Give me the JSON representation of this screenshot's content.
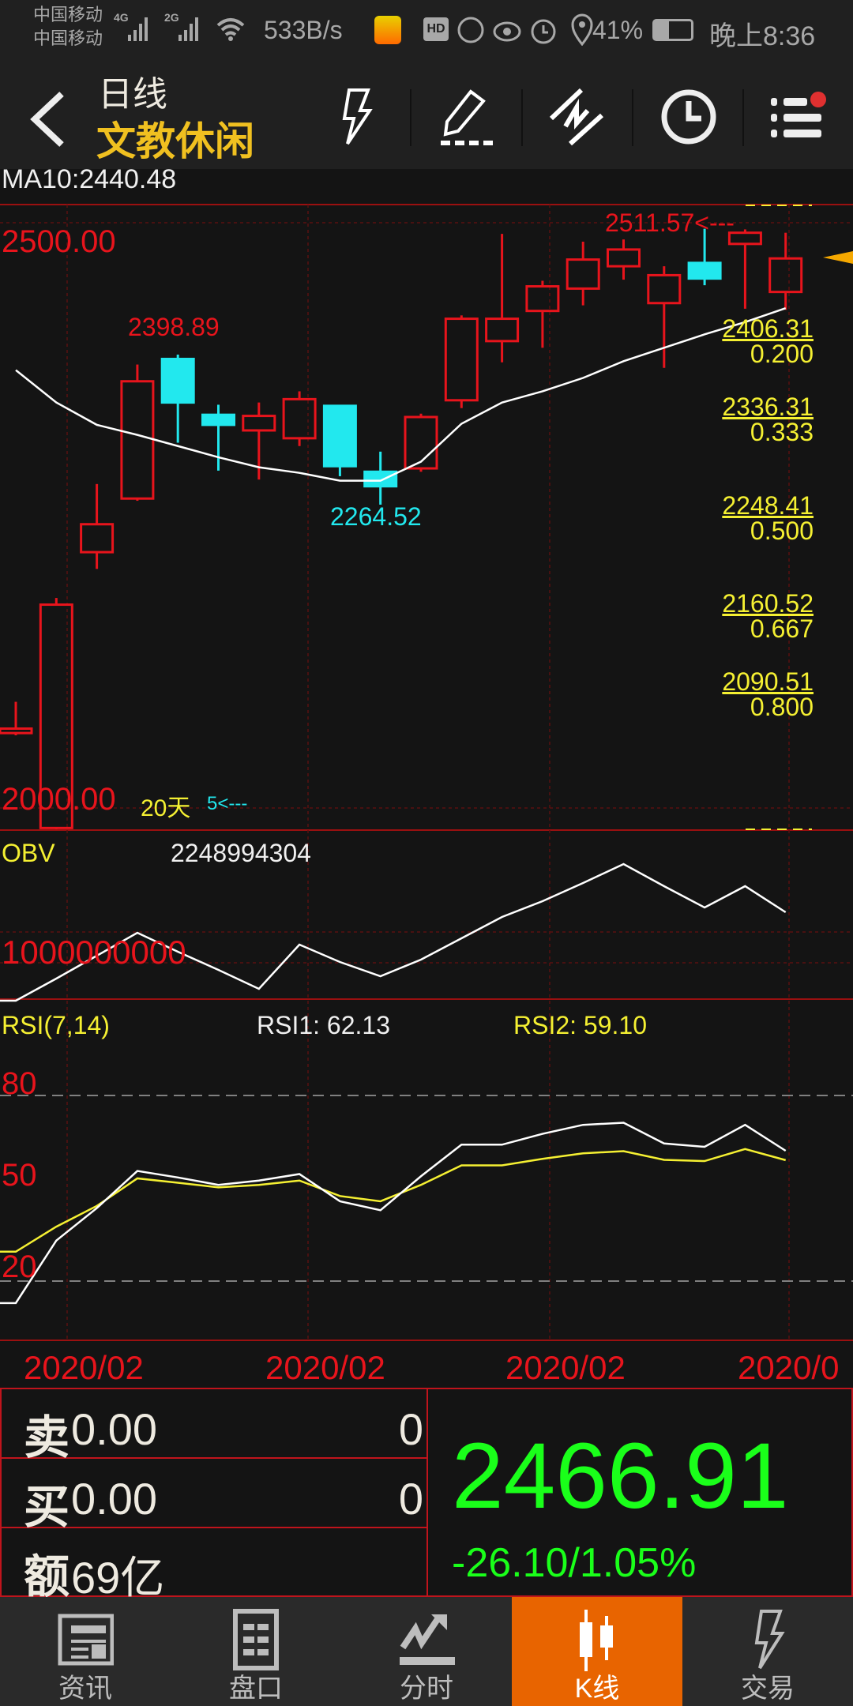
{
  "status_bar": {
    "carrier1": "中国移动",
    "carrier2": "中国移动",
    "net1": "4G",
    "net2": "2G",
    "speed": "533B/s",
    "battery": "41%",
    "time": "晚上8:36"
  },
  "header": {
    "period": "日线",
    "sector": "文教休闲",
    "icons": [
      "lightning-icon",
      "pencil-icon",
      "line-draw-icon",
      "clock-icon",
      "menu-icon"
    ]
  },
  "colors": {
    "up": "#e8141c",
    "down": "#22e8ee",
    "ma": "#ffffff",
    "rsi1": "#ffffff",
    "rsi2": "#f5f032",
    "price": "#1aff1a",
    "accent": "#e86400"
  },
  "main_chart": {
    "ma_label": "MA10:2440.48",
    "y_top_label": "2500.00",
    "y_bottom_label": "2000.00",
    "high_label": "2398.89",
    "low_label": "2264.52",
    "max_label": "2511.57<---",
    "period_label": "20天",
    "arrow_label": "5<---",
    "fib": [
      {
        "price": "2406.31",
        "ratio": "0.200",
        "v": 2406.31
      },
      {
        "price": "2336.31",
        "ratio": "0.333",
        "v": 2336.31
      },
      {
        "price": "2248.41",
        "ratio": "0.500",
        "v": 2248.41
      },
      {
        "price": "2160.52",
        "ratio": "0.667",
        "v": 2160.52
      },
      {
        "price": "2090.51",
        "ratio": "0.800",
        "v": 2090.51
      }
    ]
  },
  "chart_data": [
    {
      "type": "candlestick",
      "ylim": [
        2000,
        2500
      ],
      "ohlc": [
        [
          2060,
          2088,
          2058,
          2064
        ],
        [
          1975,
          2181,
          1970,
          2175
        ],
        [
          2222,
          2283,
          2207,
          2247
        ],
        [
          2270,
          2390,
          2268,
          2375
        ],
        [
          2395,
          2398.89,
          2320,
          2356
        ],
        [
          2345,
          2354,
          2295,
          2336
        ],
        [
          2331,
          2356,
          2287,
          2344
        ],
        [
          2324,
          2366,
          2317,
          2359
        ],
        [
          2353,
          2353,
          2290,
          2299
        ],
        [
          2294,
          2312,
          2264.52,
          2281
        ],
        [
          2297,
          2346,
          2294,
          2343
        ],
        [
          2358,
          2434,
          2351,
          2431
        ],
        [
          2411,
          2507,
          2392,
          2431
        ],
        [
          2438,
          2465,
          2405,
          2460
        ],
        [
          2458,
          2500,
          2443,
          2484
        ],
        [
          2478,
          2502,
          2466,
          2493
        ],
        [
          2445,
          2478,
          2387,
          2470
        ],
        [
          2481,
          2511.57,
          2461,
          2467
        ],
        [
          2498,
          2511,
          2440,
          2508
        ],
        [
          2455,
          2508,
          2439,
          2485
        ]
      ],
      "ma10": [
        2385,
        2356,
        2336,
        2327,
        2317,
        2307,
        2298,
        2293,
        2286,
        2286,
        2303,
        2337,
        2356,
        2366,
        2378,
        2393,
        2405,
        2417,
        2428,
        2440.48
      ]
    },
    {
      "type": "line",
      "name": "OBV",
      "value_label": "2248994304",
      "tick_label": "1000000000",
      "values": [
        -551000000,
        149000000,
        874000000,
        1599000000,
        999000000,
        424000000,
        -176000000,
        1224000000,
        674000000,
        224000000,
        749000000,
        1424000000,
        2099000000,
        2599000000,
        3174000000,
        3774000000,
        3074000000,
        2399000000,
        3074000000,
        2248994304
      ]
    },
    {
      "type": "line",
      "title": "RSI(7,14)",
      "rsi1_label": "RSI1: 62.13",
      "rsi2_label": "RSI2: 59.10",
      "ticks": [
        "80",
        "50",
        "20"
      ],
      "series": [
        {
          "name": "RSI1",
          "values": [
            12.9,
            33.1,
            43.6,
            55.6,
            53.5,
            51.1,
            52.5,
            54.6,
            45.8,
            42.9,
            53.9,
            64.1,
            64.1,
            67.6,
            70.5,
            71.2,
            64.5,
            63.4,
            70.5,
            62.13
          ]
        },
        {
          "name": "RSI2",
          "values": [
            29.5,
            37.6,
            44.3,
            53.2,
            51.8,
            50.3,
            51.1,
            52.5,
            47.5,
            45.8,
            51.1,
            57.4,
            57.4,
            59.5,
            61.3,
            62.0,
            59.2,
            58.8,
            62.7,
            59.1
          ]
        }
      ]
    },
    {
      "type": "axis",
      "date_labels": [
        "2020/02",
        "2020/02",
        "2020/02",
        "2020/0"
      ]
    }
  ],
  "quote": {
    "sell_label": "卖",
    "sell_price": "0.00",
    "sell_vol": "0",
    "buy_label": "买",
    "buy_price": "0.00",
    "buy_vol": "0",
    "amount_label": "额",
    "amount": "69亿",
    "price": "2466.91",
    "change": "-26.10/1.05%"
  },
  "nav": [
    {
      "label": "资讯",
      "icon": "news-icon"
    },
    {
      "label": "盘口",
      "icon": "order-book-icon"
    },
    {
      "label": "分时",
      "icon": "intraday-icon"
    },
    {
      "label": "K线",
      "icon": "candlestick-icon",
      "active": true
    },
    {
      "label": "交易",
      "icon": "trade-lightning-icon"
    }
  ]
}
